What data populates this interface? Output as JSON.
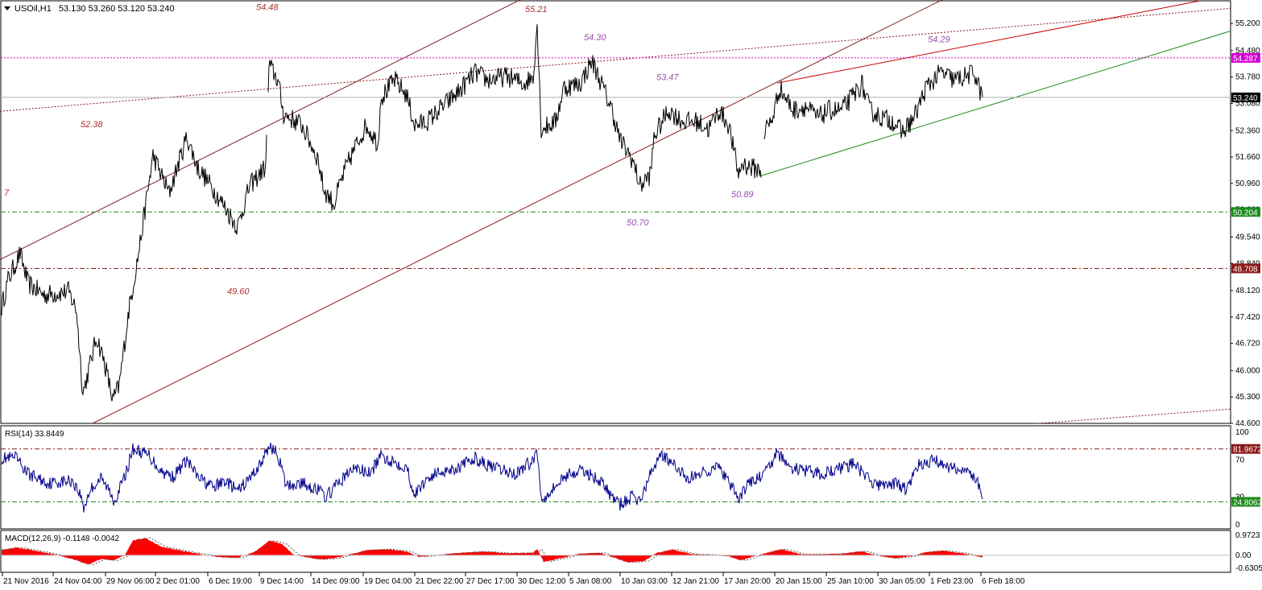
{
  "header": {
    "symbol": "USOil,H1",
    "ohlc": "53.130 53.260 53.120 53.240"
  },
  "colors": {
    "price_line": "#000000",
    "channel_line": "#8b1a1a",
    "upper_trend": "#cc0000",
    "support_trend": "#1a8a1a",
    "magenta_level": "#d400d4",
    "green_level": "#1f8a1f",
    "red_level": "#8b1a1a",
    "rsi_line": "#00008b",
    "macd_hist": "#ff0000",
    "label_purple": "#9a4fb0",
    "label_red": "#b03030"
  },
  "chart_data": [
    {
      "type": "line",
      "title": "USOil,H1",
      "ylim": [
        44.6,
        55.8
      ],
      "y_ticks": [
        "55.200",
        "54.480",
        "53.780",
        "53.080",
        "52.360",
        "51.660",
        "50.960",
        "50.260",
        "49.540",
        "48.840",
        "48.120",
        "47.420",
        "46.720",
        "46.000",
        "45.300",
        "44.600"
      ],
      "x_ticks": [
        "21 Nov 2016",
        "24 Nov 04:00",
        "29 Nov 06:00",
        "2 Dec 01:00",
        "6 Dec 19:00",
        "9 Dec 14:00",
        "14 Dec 09:00",
        "19 Dec 04:00",
        "21 Dec 22:00",
        "27 Dec 17:00",
        "30 Dec 12:00",
        "5 Jan 08:00",
        "10 Jan 03:00",
        "12 Jan 21:00",
        "17 Jan 20:00",
        "20 Jan 15:00",
        "25 Jan 10:00",
        "30 Jan 05:00",
        "1 Feb 23:00",
        "6 Feb 18:00"
      ],
      "price_anchors": [
        [
          0,
          47.5
        ],
        [
          10,
          48.4
        ],
        [
          25,
          49.1
        ],
        [
          35,
          48.3
        ],
        [
          55,
          48.0
        ],
        [
          85,
          48.1
        ],
        [
          95,
          47.6
        ],
        [
          103,
          45.4
        ],
        [
          110,
          46.0
        ],
        [
          120,
          46.9
        ],
        [
          130,
          46.2
        ],
        [
          140,
          45.2
        ],
        [
          148,
          45.6
        ],
        [
          160,
          47.6
        ],
        [
          172,
          49.1
        ],
        [
          190,
          51.7
        ],
        [
          210,
          50.7
        ],
        [
          232,
          52.2
        ],
        [
          245,
          51.4
        ],
        [
          265,
          50.8
        ],
        [
          280,
          50.3
        ],
        [
          295,
          49.8
        ],
        [
          310,
          50.9
        ],
        [
          330,
          51.4
        ],
        [
          334,
          54.1
        ],
        [
          345,
          53.7
        ],
        [
          352,
          52.8
        ],
        [
          375,
          52.5
        ],
        [
          395,
          51.6
        ],
        [
          402,
          50.8
        ],
        [
          415,
          50.4
        ],
        [
          420,
          50.8
        ],
        [
          430,
          51.4
        ],
        [
          445,
          52.1
        ],
        [
          455,
          52.5
        ],
        [
          470,
          52.0
        ],
        [
          472,
          53.2
        ],
        [
          490,
          53.7
        ],
        [
          505,
          53.3
        ],
        [
          515,
          52.5
        ],
        [
          530,
          52.6
        ],
        [
          545,
          52.9
        ],
        [
          570,
          53.4
        ],
        [
          590,
          53.9
        ],
        [
          605,
          53.7
        ],
        [
          630,
          53.8
        ],
        [
          650,
          53.6
        ],
        [
          662,
          53.8
        ],
        [
          667,
          55.2
        ],
        [
          672,
          52.4
        ],
        [
          690,
          52.6
        ],
        [
          700,
          53.5
        ],
        [
          720,
          53.6
        ],
        [
          735,
          54.2
        ],
        [
          745,
          53.7
        ],
        [
          760,
          52.9
        ],
        [
          770,
          52.1
        ],
        [
          785,
          51.6
        ],
        [
          795,
          50.9
        ],
        [
          808,
          51.2
        ],
        [
          812,
          52.2
        ],
        [
          830,
          52.9
        ],
        [
          848,
          52.6
        ],
        [
          865,
          52.6
        ],
        [
          880,
          52.4
        ],
        [
          893,
          52.9
        ],
        [
          905,
          52.5
        ],
        [
          917,
          51.2
        ],
        [
          922,
          51.5
        ],
        [
          930,
          51.4
        ],
        [
          945,
          51.3
        ],
        [
          950,
          52.4
        ],
        [
          958,
          52.6
        ],
        [
          968,
          53.5
        ],
        [
          985,
          52.9
        ],
        [
          1000,
          53.0
        ],
        [
          1015,
          52.7
        ],
        [
          1030,
          52.9
        ],
        [
          1045,
          52.9
        ],
        [
          1060,
          53.3
        ],
        [
          1070,
          53.6
        ],
        [
          1080,
          52.9
        ],
        [
          1095,
          52.7
        ],
        [
          1110,
          52.6
        ],
        [
          1120,
          52.3
        ],
        [
          1135,
          52.7
        ],
        [
          1150,
          53.5
        ],
        [
          1168,
          53.9
        ],
        [
          1185,
          53.7
        ],
        [
          1200,
          53.8
        ],
        [
          1210,
          53.9
        ],
        [
          1220,
          53.2
        ]
      ],
      "levels": [
        {
          "value": 54.287,
          "label": "54.287"
        },
        {
          "value": 50.204,
          "label": "50.204"
        },
        {
          "value": 48.708,
          "label": "48.708"
        }
      ],
      "current_price": "53.240",
      "annotations": [
        "54.48",
        "55.21",
        "54.30",
        "54.29",
        "53.47",
        "52.38",
        "50.70",
        "50.89",
        "49.60",
        "7"
      ]
    },
    {
      "type": "line",
      "title": "RSI(14) 33.8449",
      "ylim": [
        0,
        100
      ],
      "y_ticks": [
        "100",
        "70",
        "30",
        "0"
      ],
      "levels": [
        {
          "value": 81.9672,
          "label": "81.9672"
        },
        {
          "value": 24.8062,
          "label": "24.8062"
        }
      ],
      "rsi_anchors": [
        [
          0,
          72
        ],
        [
          20,
          72
        ],
        [
          35,
          55
        ],
        [
          60,
          45
        ],
        [
          90,
          48
        ],
        [
          100,
          32
        ],
        [
          104,
          18
        ],
        [
          112,
          38
        ],
        [
          125,
          50
        ],
        [
          135,
          38
        ],
        [
          142,
          26
        ],
        [
          155,
          52
        ],
        [
          165,
          82
        ],
        [
          185,
          75
        ],
        [
          200,
          58
        ],
        [
          215,
          52
        ],
        [
          232,
          70
        ],
        [
          245,
          52
        ],
        [
          265,
          40
        ],
        [
          280,
          48
        ],
        [
          295,
          36
        ],
        [
          310,
          50
        ],
        [
          325,
          68
        ],
        [
          335,
          86
        ],
        [
          345,
          76
        ],
        [
          355,
          42
        ],
        [
          375,
          45
        ],
        [
          395,
          38
        ],
        [
          405,
          30
        ],
        [
          420,
          45
        ],
        [
          440,
          62
        ],
        [
          460,
          55
        ],
        [
          472,
          74
        ],
        [
          490,
          68
        ],
        [
          505,
          62
        ],
        [
          515,
          32
        ],
        [
          530,
          50
        ],
        [
          548,
          58
        ],
        [
          570,
          62
        ],
        [
          590,
          72
        ],
        [
          610,
          62
        ],
        [
          640,
          55
        ],
        [
          662,
          70
        ],
        [
          667,
          80
        ],
        [
          672,
          28
        ],
        [
          690,
          42
        ],
        [
          705,
          55
        ],
        [
          725,
          58
        ],
        [
          745,
          48
        ],
        [
          760,
          30
        ],
        [
          770,
          22
        ],
        [
          785,
          30
        ],
        [
          795,
          26
        ],
        [
          808,
          55
        ],
        [
          820,
          78
        ],
        [
          835,
          65
        ],
        [
          855,
          50
        ],
        [
          875,
          58
        ],
        [
          893,
          62
        ],
        [
          905,
          45
        ],
        [
          917,
          28
        ],
        [
          930,
          45
        ],
        [
          950,
          55
        ],
        [
          965,
          78
        ],
        [
          980,
          62
        ],
        [
          1000,
          58
        ],
        [
          1020,
          55
        ],
        [
          1040,
          60
        ],
        [
          1060,
          66
        ],
        [
          1075,
          52
        ],
        [
          1090,
          42
        ],
        [
          1110,
          45
        ],
        [
          1125,
          38
        ],
        [
          1140,
          64
        ],
        [
          1160,
          70
        ],
        [
          1180,
          62
        ],
        [
          1200,
          58
        ],
        [
          1210,
          52
        ],
        [
          1220,
          33.8
        ]
      ]
    },
    {
      "type": "area",
      "title": "MACD(12,26,9) -0.1148 -0.0042",
      "ylim": [
        -0.6305,
        0.9723
      ],
      "y_ticks": [
        "0.9723",
        "0.00",
        "-0.6305"
      ],
      "macd_anchors": [
        [
          0,
          0.25
        ],
        [
          20,
          0.38
        ],
        [
          40,
          0.25
        ],
        [
          70,
          0.02
        ],
        [
          95,
          -0.25
        ],
        [
          110,
          -0.45
        ],
        [
          125,
          -0.18
        ],
        [
          140,
          -0.25
        ],
        [
          155,
          0.0
        ],
        [
          165,
          0.72
        ],
        [
          180,
          0.85
        ],
        [
          200,
          0.42
        ],
        [
          225,
          0.22
        ],
        [
          250,
          0.05
        ],
        [
          275,
          -0.1
        ],
        [
          295,
          -0.12
        ],
        [
          315,
          0.15
        ],
        [
          335,
          0.72
        ],
        [
          350,
          0.55
        ],
        [
          365,
          0.02
        ],
        [
          395,
          -0.2
        ],
        [
          415,
          -0.15
        ],
        [
          430,
          0.0
        ],
        [
          455,
          0.25
        ],
        [
          480,
          0.3
        ],
        [
          505,
          0.18
        ],
        [
          520,
          -0.08
        ],
        [
          545,
          0.02
        ],
        [
          570,
          0.12
        ],
        [
          600,
          0.18
        ],
        [
          630,
          0.1
        ],
        [
          662,
          0.12
        ],
        [
          667,
          0.32
        ],
        [
          675,
          -0.32
        ],
        [
          695,
          -0.15
        ],
        [
          720,
          0.08
        ],
        [
          745,
          0.12
        ],
        [
          765,
          -0.15
        ],
        [
          780,
          -0.35
        ],
        [
          800,
          -0.28
        ],
        [
          815,
          0.12
        ],
        [
          835,
          0.28
        ],
        [
          860,
          0.05
        ],
        [
          885,
          0.02
        ],
        [
          905,
          -0.05
        ],
        [
          920,
          -0.25
        ],
        [
          940,
          0.0
        ],
        [
          970,
          0.3
        ],
        [
          995,
          0.05
        ],
        [
          1020,
          0.05
        ],
        [
          1045,
          0.08
        ],
        [
          1070,
          0.2
        ],
        [
          1090,
          -0.02
        ],
        [
          1110,
          -0.15
        ],
        [
          1130,
          -0.05
        ],
        [
          1150,
          0.15
        ],
        [
          1170,
          0.22
        ],
        [
          1195,
          0.1
        ],
        [
          1220,
          -0.11
        ]
      ]
    }
  ]
}
